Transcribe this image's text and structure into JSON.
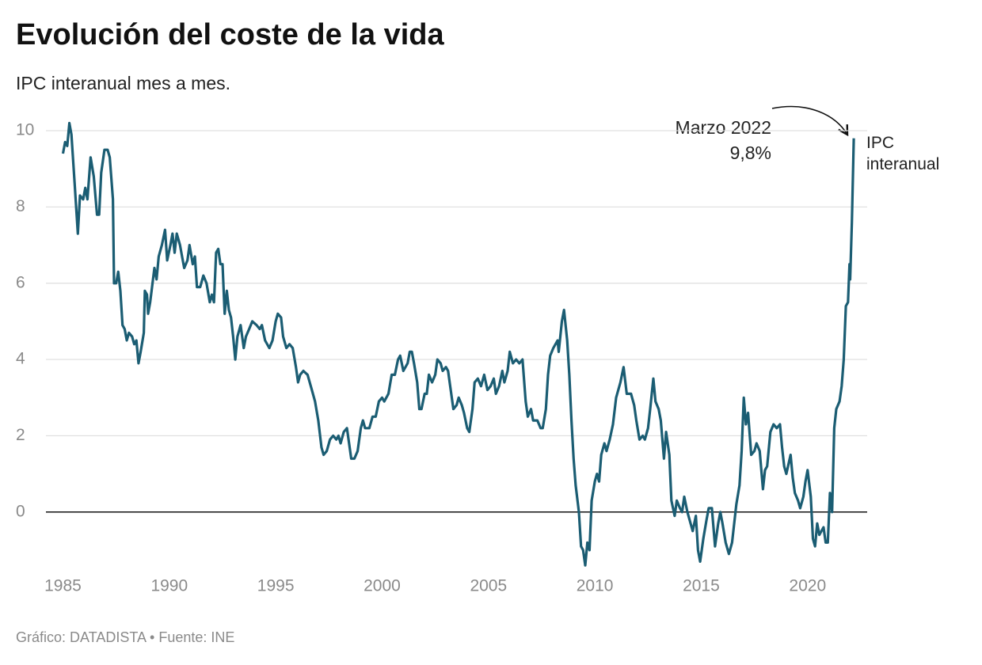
{
  "chart_data": {
    "type": "line",
    "title": "Evolución del coste de la vida",
    "subtitle": "IPC interanual mes a mes.",
    "footer": "Gráfico: DATADISTA • Fuente: INE",
    "annotation": {
      "title": "Marzo 2022",
      "label": "9,8%"
    },
    "x": [
      1985.0,
      1985.1,
      1985.2,
      1985.3,
      1985.4,
      1985.55,
      1985.7,
      1985.8,
      1985.95,
      1986.05,
      1986.15,
      1986.3,
      1986.45,
      1986.6,
      1986.7,
      1986.8,
      1986.95,
      1987.1,
      1987.2,
      1987.35,
      1987.4,
      1987.5,
      1987.6,
      1987.7,
      1987.8,
      1987.9,
      1988.0,
      1988.1,
      1988.25,
      1988.35,
      1988.45,
      1988.55,
      1988.65,
      1988.8,
      1988.85,
      1988.95,
      1989.0,
      1989.1,
      1989.3,
      1989.4,
      1989.5,
      1989.65,
      1989.8,
      1989.9,
      1990.05,
      1990.15,
      1990.25,
      1990.35,
      1990.5,
      1990.6,
      1990.7,
      1990.85,
      1990.95,
      1991.1,
      1991.2,
      1991.3,
      1991.45,
      1991.6,
      1991.75,
      1991.9,
      1992.0,
      1992.1,
      1992.2,
      1992.3,
      1992.4,
      1992.5,
      1992.6,
      1992.7,
      1992.8,
      1992.9,
      1993.0,
      1993.1,
      1993.2,
      1993.35,
      1993.5,
      1993.6,
      1993.75,
      1993.9,
      1994.1,
      1994.25,
      1994.35,
      1994.5,
      1994.7,
      1994.85,
      1995.0,
      1995.1,
      1995.25,
      1995.35,
      1995.5,
      1995.65,
      1995.8,
      1995.95,
      1996.05,
      1996.15,
      1996.3,
      1996.5,
      1996.7,
      1996.85,
      1997.0,
      1997.15,
      1997.25,
      1997.4,
      1997.55,
      1997.7,
      1997.85,
      1997.95,
      1998.05,
      1998.2,
      1998.35,
      1998.45,
      1998.55,
      1998.7,
      1998.85,
      1999.0,
      1999.1,
      1999.2,
      1999.4,
      1999.55,
      1999.7,
      1999.85,
      2000.0,
      2000.1,
      2000.3,
      2000.45,
      2000.6,
      2000.75,
      2000.85,
      2001.0,
      2001.2,
      2001.3,
      2001.4,
      2001.5,
      2001.65,
      2001.75,
      2001.85,
      2002.0,
      2002.1,
      2002.2,
      2002.35,
      2002.5,
      2002.6,
      2002.75,
      2002.85,
      2003.0,
      2003.1,
      2003.25,
      2003.35,
      2003.5,
      2003.6,
      2003.75,
      2003.85,
      2004.0,
      2004.1,
      2004.25,
      2004.35,
      2004.5,
      2004.65,
      2004.8,
      2004.95,
      2005.1,
      2005.25,
      2005.35,
      2005.5,
      2005.65,
      2005.75,
      2005.9,
      2006.0,
      2006.15,
      2006.3,
      2006.45,
      2006.6,
      2006.75,
      2006.85,
      2007.0,
      2007.1,
      2007.3,
      2007.45,
      2007.55,
      2007.7,
      2007.8,
      2007.9,
      2008.05,
      2008.25,
      2008.3,
      2008.45,
      2008.55,
      2008.7,
      2008.8,
      2008.9,
      2009.0,
      2009.1,
      2009.25,
      2009.35,
      2009.45,
      2009.55,
      2009.65,
      2009.75,
      2009.85,
      2010.0,
      2010.1,
      2010.2,
      2010.3,
      2010.45,
      2010.55,
      2010.7,
      2010.85,
      2011.0,
      2011.2,
      2011.35,
      2011.5,
      2011.7,
      2011.85,
      2011.95,
      2012.1,
      2012.25,
      2012.35,
      2012.5,
      2012.6,
      2012.75,
      2012.85,
      2013.0,
      2013.1,
      2013.25,
      2013.35,
      2013.5,
      2013.6,
      2013.75,
      2013.85,
      2014.0,
      2014.1,
      2014.2,
      2014.35,
      2014.45,
      2014.6,
      2014.75,
      2014.85,
      2014.95,
      2015.1,
      2015.25,
      2015.35,
      2015.5,
      2015.65,
      2015.8,
      2015.9,
      2016.0,
      2016.15,
      2016.3,
      2016.45,
      2016.65,
      2016.8,
      2016.9,
      2017.0,
      2017.1,
      2017.2,
      2017.35,
      2017.5,
      2017.6,
      2017.75,
      2017.9,
      2018.0,
      2018.1,
      2018.25,
      2018.4,
      2018.55,
      2018.7,
      2018.8,
      2018.9,
      2019.0,
      2019.2,
      2019.3,
      2019.4,
      2019.55,
      2019.65,
      2019.8,
      2019.9,
      2020.0,
      2020.15,
      2020.25,
      2020.35,
      2020.45,
      2020.55,
      2020.75,
      2020.85,
      2020.95,
      2021.05,
      2021.15,
      2021.25,
      2021.35,
      2021.5,
      2021.6,
      2021.7,
      2021.8,
      2021.9,
      2021.97,
      2022.0,
      2022.08,
      2022.17
    ],
    "series": [
      {
        "name": "IPC interanual",
        "color": "#1b5d73",
        "values": [
          9.4,
          9.7,
          9.6,
          10.2,
          9.9,
          8.6,
          7.3,
          8.3,
          8.2,
          8.5,
          8.2,
          9.3,
          8.8,
          7.8,
          7.8,
          8.9,
          9.5,
          9.5,
          9.3,
          8.2,
          6.0,
          6.0,
          6.3,
          5.8,
          4.9,
          4.8,
          4.5,
          4.7,
          4.6,
          4.4,
          4.5,
          3.9,
          4.2,
          4.7,
          5.8,
          5.7,
          5.2,
          5.5,
          6.4,
          6.1,
          6.7,
          7.0,
          7.4,
          6.6,
          7.0,
          7.3,
          6.8,
          7.3,
          7.0,
          6.7,
          6.4,
          6.6,
          7.0,
          6.5,
          6.7,
          5.9,
          5.9,
          6.2,
          6.0,
          5.5,
          5.7,
          5.5,
          6.8,
          6.9,
          6.5,
          6.5,
          5.2,
          5.8,
          5.3,
          5.1,
          4.6,
          4.0,
          4.6,
          4.9,
          4.3,
          4.6,
          4.8,
          5.0,
          4.9,
          4.8,
          4.9,
          4.5,
          4.3,
          4.5,
          5.0,
          5.2,
          5.1,
          4.6,
          4.3,
          4.4,
          4.3,
          3.8,
          3.4,
          3.6,
          3.7,
          3.6,
          3.2,
          2.9,
          2.4,
          1.7,
          1.5,
          1.6,
          1.9,
          2.0,
          1.9,
          2.0,
          1.8,
          2.1,
          2.2,
          1.8,
          1.4,
          1.4,
          1.6,
          2.2,
          2.4,
          2.2,
          2.2,
          2.5,
          2.5,
          2.9,
          3.0,
          2.9,
          3.1,
          3.6,
          3.6,
          4.0,
          4.1,
          3.7,
          3.9,
          4.2,
          4.2,
          3.9,
          3.4,
          2.7,
          2.7,
          3.1,
          3.1,
          3.6,
          3.4,
          3.6,
          4.0,
          3.9,
          3.7,
          3.8,
          3.7,
          3.1,
          2.7,
          2.8,
          3.0,
          2.8,
          2.6,
          2.2,
          2.1,
          2.7,
          3.4,
          3.5,
          3.3,
          3.6,
          3.2,
          3.3,
          3.5,
          3.1,
          3.3,
          3.7,
          3.4,
          3.7,
          4.2,
          3.9,
          4.0,
          3.9,
          4.0,
          2.9,
          2.5,
          2.7,
          2.4,
          2.4,
          2.2,
          2.2,
          2.7,
          3.6,
          4.1,
          4.3,
          4.5,
          4.2,
          5.0,
          5.3,
          4.5,
          3.6,
          2.4,
          1.4,
          0.7,
          0.0,
          -0.9,
          -1.0,
          -1.4,
          -0.8,
          -1.0,
          0.3,
          0.8,
          1.0,
          0.8,
          1.5,
          1.8,
          1.6,
          1.9,
          2.3,
          3.0,
          3.4,
          3.8,
          3.1,
          3.1,
          2.8,
          2.4,
          1.9,
          2.0,
          1.9,
          2.2,
          2.7,
          3.5,
          2.9,
          2.7,
          2.4,
          1.4,
          2.1,
          1.5,
          0.3,
          -0.1,
          0.3,
          0.1,
          0.0,
          0.4,
          0.0,
          -0.2,
          -0.5,
          -0.1,
          -1.0,
          -1.3,
          -0.7,
          -0.2,
          0.1,
          0.1,
          -0.9,
          -0.3,
          0.0,
          -0.3,
          -0.8,
          -1.1,
          -0.8,
          0.2,
          0.7,
          1.6,
          3.0,
          2.3,
          2.6,
          1.5,
          1.6,
          1.8,
          1.6,
          0.6,
          1.1,
          1.2,
          2.1,
          2.3,
          2.2,
          2.3,
          1.7,
          1.2,
          1.0,
          1.5,
          0.9,
          0.5,
          0.3,
          0.1,
          0.4,
          0.8,
          1.1,
          0.4,
          -0.7,
          -0.9,
          -0.3,
          -0.6,
          -0.4,
          -0.8,
          -0.8,
          0.5,
          0.0,
          2.2,
          2.7,
          2.9,
          3.3,
          4.0,
          5.4,
          5.5,
          6.5,
          6.1,
          7.6,
          9.8
        ]
      }
    ],
    "xlim": [
      1984.2,
      2022.8
    ],
    "ylim": [
      -1.5,
      10.5
    ],
    "xticks": [
      1985,
      1990,
      1995,
      2000,
      2005,
      2010,
      2015,
      2020
    ],
    "yticks": [
      0,
      2,
      4,
      6,
      8,
      10
    ],
    "grid": true
  }
}
